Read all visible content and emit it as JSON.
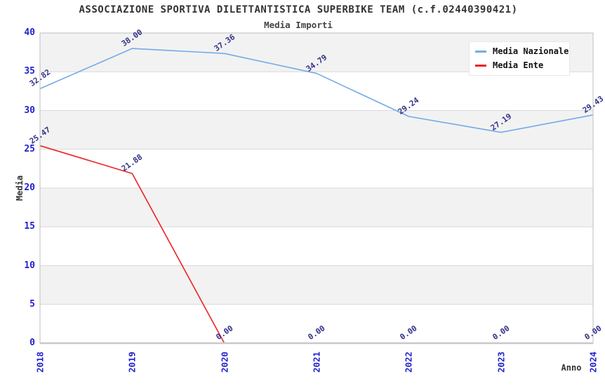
{
  "chart_data": {
    "type": "line",
    "title": "ASSOCIAZIONE SPORTIVA DILETTANTISTICA SUPERBIKE TEAM (c.f.02440390421)",
    "subtitle": "Media Importi",
    "x": [
      "2018",
      "2019",
      "2020",
      "2021",
      "2022",
      "2023",
      "2024"
    ],
    "series": [
      {
        "name": "Media Nazionale",
        "color": "#75aae8",
        "values": [
          32.82,
          38.0,
          37.36,
          34.79,
          29.24,
          27.19,
          29.43
        ],
        "labels": [
          "32.82",
          "38.00",
          "37.36",
          "34.79",
          "29.24",
          "27.19",
          "29.43"
        ]
      },
      {
        "name": "Media Ente",
        "color": "#ee2222",
        "values": [
          25.47,
          21.88,
          0.0,
          0.0,
          0.0,
          0.0,
          0.0
        ],
        "labels": [
          "25.47",
          "21.88",
          "0.00",
          "0.00",
          "0.00",
          "0.00",
          "0.00"
        ]
      }
    ],
    "xlabel": "Anno",
    "ylabel": "Media",
    "ylim": [
      0,
      40
    ],
    "ytick_step": 5,
    "yticks": [
      "0",
      "5",
      "10",
      "15",
      "20",
      "25",
      "30",
      "35",
      "40"
    ],
    "legend_position": "top-right",
    "grid": "horizontal alternating bands every 5 units, gray on 5-10/15-20/25-30/35-40"
  },
  "colors": {
    "background": "#ffffff",
    "band_gray": "#f2f2f2",
    "gridline": "#d9d9d9",
    "frame": "#c9c9c9",
    "tick_label": "#2222cc",
    "point_label": "#333388",
    "axis_title": "#333333",
    "title_text": "#333333",
    "legend_text": "#111111"
  }
}
